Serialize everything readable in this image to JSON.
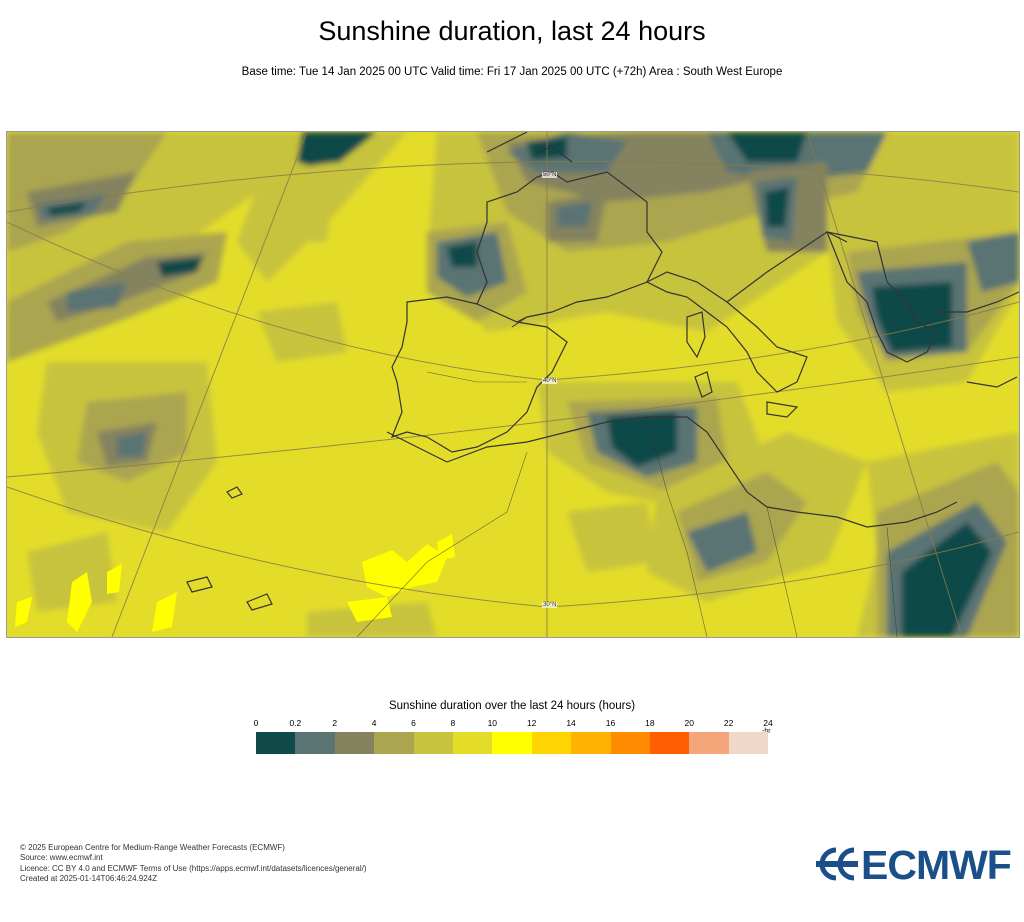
{
  "header": {
    "title": "Sunshine duration, last 24 hours",
    "subtitle": "Base time: Tue 14 Jan 2025 00 UTC Valid time: Fri 17 Jan 2025 00 UTC (+72h) Area : South West Europe"
  },
  "map": {
    "area": "South West Europe",
    "grid_labels": [
      "50°N",
      "40°N",
      "30°N"
    ],
    "colors": {
      "background": "#e3dd2a",
      "land_outline": "#333333",
      "grid_line": "#8a7a4a"
    }
  },
  "legend": {
    "title": "Sunshine duration over the last 24 hours (hours)",
    "unit": "-hr",
    "ticks": [
      "0",
      "0.2",
      "2",
      "4",
      "6",
      "8",
      "10",
      "12",
      "14",
      "16",
      "18",
      "20",
      "22",
      "24"
    ],
    "colors": [
      "#114a4a",
      "#5a7373",
      "#85835f",
      "#aba550",
      "#c8c33c",
      "#e3dd2a",
      "#ffff00",
      "#ffd400",
      "#ffb300",
      "#ff8c00",
      "#ff5f00",
      "#f5a57a",
      "#f0d8c8"
    ]
  },
  "footer": {
    "lines": [
      "© 2025 European Centre for Medium-Range Weather Forecasts (ECMWF)",
      "Source: www.ecmwf.int",
      "Licence: CC BY 4.0 and ECMWF Terms of Use (https://apps.ecmwf.int/datasets/licences/general/)",
      "Created at 2025-01-14T06:46:24.924Z"
    ]
  },
  "logo": {
    "text": "ECMWF",
    "color": "#1b4f8a"
  }
}
